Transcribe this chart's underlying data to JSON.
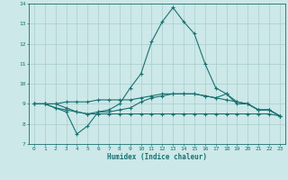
{
  "xlabel": "Humidex (Indice chaleur)",
  "bg_color": "#cce8e8",
  "line_color": "#1a7070",
  "grid_color": "#aacccc",
  "xlim": [
    -0.5,
    23.5
  ],
  "ylim": [
    7,
    14
  ],
  "xticks": [
    0,
    1,
    2,
    3,
    4,
    5,
    6,
    7,
    8,
    9,
    10,
    11,
    12,
    13,
    14,
    15,
    16,
    17,
    18,
    19,
    20,
    21,
    22,
    23
  ],
  "yticks": [
    7,
    8,
    9,
    10,
    11,
    12,
    13,
    14
  ],
  "line1_x": [
    0,
    1,
    2,
    3,
    4,
    5,
    6,
    7,
    8,
    9,
    10,
    11,
    12,
    13,
    14,
    15,
    16,
    17,
    18,
    19,
    20,
    21,
    22,
    23
  ],
  "line1_y": [
    9.0,
    9.0,
    8.8,
    8.6,
    7.5,
    7.9,
    8.6,
    8.7,
    9.0,
    9.8,
    10.5,
    12.1,
    13.1,
    13.8,
    13.1,
    12.5,
    11.0,
    9.8,
    9.5,
    9.0,
    9.0,
    8.7,
    8.7,
    8.4
  ],
  "line2_x": [
    0,
    1,
    2,
    3,
    4,
    5,
    6,
    7,
    8,
    9,
    10,
    11,
    12,
    13,
    14,
    15,
    16,
    17,
    18,
    19,
    20,
    21,
    22,
    23
  ],
  "line2_y": [
    9.0,
    9.0,
    9.0,
    8.8,
    8.6,
    8.5,
    8.6,
    8.6,
    8.7,
    8.8,
    9.1,
    9.3,
    9.4,
    9.5,
    9.5,
    9.5,
    9.4,
    9.3,
    9.5,
    9.1,
    9.0,
    8.7,
    8.7,
    8.4
  ],
  "line3_x": [
    0,
    1,
    2,
    3,
    4,
    5,
    6,
    7,
    8,
    9,
    10,
    11,
    12,
    13,
    14,
    15,
    16,
    17,
    18,
    19,
    20,
    21,
    22,
    23
  ],
  "line3_y": [
    9.0,
    9.0,
    8.8,
    8.7,
    8.6,
    8.5,
    8.5,
    8.5,
    8.5,
    8.5,
    8.5,
    8.5,
    8.5,
    8.5,
    8.5,
    8.5,
    8.5,
    8.5,
    8.5,
    8.5,
    8.5,
    8.5,
    8.5,
    8.4
  ],
  "line4_x": [
    0,
    1,
    2,
    3,
    4,
    5,
    6,
    7,
    8,
    9,
    10,
    11,
    12,
    13,
    14,
    15,
    16,
    17,
    18,
    19,
    20,
    21,
    22,
    23
  ],
  "line4_y": [
    9.0,
    9.0,
    9.0,
    9.1,
    9.1,
    9.1,
    9.2,
    9.2,
    9.2,
    9.2,
    9.3,
    9.4,
    9.5,
    9.5,
    9.5,
    9.5,
    9.4,
    9.3,
    9.2,
    9.1,
    9.0,
    8.7,
    8.7,
    8.4
  ]
}
